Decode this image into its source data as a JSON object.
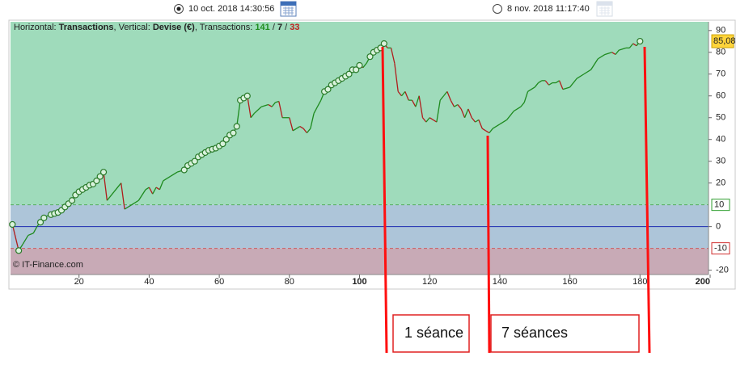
{
  "header": {
    "start": "10 oct. 2018 14:30:56",
    "end": "8 nov. 2018 11:17:40"
  },
  "chart_data": {
    "type": "line",
    "info": {
      "horizontal_label": "Horizontal:",
      "horizontal": "Transactions",
      "separator": ",",
      "vertical_label": "Vertical:",
      "vertical": "Devise (€)",
      "count_label": "Transactions:",
      "counts": [
        141,
        7,
        33
      ],
      "count_separator": "/",
      "count_colors": [
        "#1f8f1f",
        "#222222",
        "#c02020"
      ]
    },
    "copyright": "© IT-Finance.com",
    "xlim": [
      0,
      200
    ],
    "xticks": [
      20,
      40,
      60,
      80,
      100,
      120,
      140,
      160,
      180,
      200
    ],
    "ylim": [
      -22,
      94
    ],
    "yticks": [
      90,
      80,
      70,
      60,
      50,
      40,
      30,
      20,
      0,
      -20
    ],
    "zone_colors": [
      "#9fdbbb",
      "#adc5d9",
      "#c8aab6"
    ],
    "zone_edges": [
      {
        "value": 10,
        "color": "#2e9e2e"
      },
      {
        "value": -10,
        "color": "#d03030"
      }
    ],
    "ref_line": {
      "value": 0,
      "color": "#1c2bb0"
    },
    "last_value": {
      "value": 85.08,
      "label": "85,08"
    },
    "series": [
      {
        "color": "#1e8a1e",
        "down_color": "#b01c1c",
        "x": [
          1,
          2.8,
          4,
          5.5,
          7,
          8,
          9,
          10,
          11,
          12,
          13,
          14,
          15,
          16,
          17,
          18,
          19,
          20,
          21,
          22,
          23,
          24,
          25,
          26,
          27,
          28,
          30,
          32,
          33,
          35,
          37,
          39,
          40,
          41,
          42,
          43,
          44,
          46,
          48,
          50,
          51,
          52,
          53,
          54,
          55,
          56,
          57,
          58,
          59,
          60,
          61,
          62,
          63,
          64,
          65,
          66,
          67,
          68,
          69,
          70,
          72,
          74,
          75,
          76,
          77,
          78,
          80,
          81,
          83,
          84,
          85,
          86,
          87,
          88,
          89,
          90,
          91,
          92,
          93,
          94,
          95,
          96,
          97,
          98,
          99,
          100,
          101,
          102,
          103,
          104,
          105,
          106,
          107,
          108,
          109,
          110,
          111,
          112,
          113,
          114,
          115,
          116,
          117,
          118,
          119,
          120,
          121,
          122,
          123,
          124,
          125,
          126,
          127,
          128,
          129,
          130,
          131,
          132,
          133,
          134,
          135,
          136,
          137,
          138,
          140,
          142,
          144,
          146,
          147,
          148,
          150,
          151,
          152,
          153,
          154,
          155,
          156,
          157,
          158,
          160,
          162,
          164,
          166,
          168,
          170,
          172,
          173,
          174,
          176,
          177,
          178,
          179,
          180
        ],
        "values": [
          1,
          -11,
          -8,
          -4,
          -3,
          0,
          2,
          4,
          5,
          5.5,
          6,
          6.5,
          7.5,
          9,
          10.5,
          12,
          14.5,
          16,
          17,
          18,
          19,
          19.5,
          21,
          23,
          25,
          12,
          16,
          20,
          8,
          10,
          12,
          17,
          18,
          15,
          18,
          17,
          21,
          23,
          25,
          26,
          28,
          29,
          30,
          32,
          33,
          34,
          35,
          35.5,
          36,
          37,
          38,
          40,
          42,
          43,
          46,
          58,
          59,
          60,
          50,
          52,
          55,
          56,
          55,
          57,
          57.5,
          50,
          50,
          44,
          46,
          45,
          43,
          45,
          52,
          55,
          58,
          62,
          63,
          65,
          66,
          67,
          68,
          69,
          70,
          72,
          72,
          74,
          73,
          75,
          78,
          80,
          81,
          82,
          84,
          82,
          82,
          75,
          62,
          60,
          62,
          58,
          58,
          55,
          60,
          50,
          48,
          50,
          49,
          48,
          58,
          60,
          62,
          58,
          55,
          56,
          54,
          50,
          54,
          50,
          48,
          49,
          45,
          44,
          43,
          45,
          47,
          49,
          53,
          55,
          57,
          62,
          64,
          66,
          67,
          67,
          65,
          66,
          66,
          67,
          63,
          64,
          68,
          70,
          72,
          77,
          79,
          80,
          79,
          81,
          82,
          82,
          84,
          83,
          85.08
        ]
      },
      {
        "marker": "circle",
        "color": "#2a7a2a",
        "fill": "#d9f2dc",
        "x": [
          1,
          2.8,
          9,
          10,
          12,
          13,
          14,
          15,
          16,
          17,
          18,
          19,
          20,
          21,
          22,
          23,
          24,
          25,
          26,
          27,
          50,
          51,
          52,
          53,
          54,
          55,
          56,
          57,
          58,
          59,
          60,
          61,
          62,
          63,
          64,
          65,
          66,
          67,
          68,
          90,
          91,
          92,
          93,
          94,
          95,
          96,
          97,
          98,
          99,
          100,
          103,
          104,
          105,
          106,
          107,
          180
        ],
        "values": [
          1,
          -11,
          2,
          4,
          5.5,
          6,
          6.5,
          7.5,
          9,
          10.5,
          12,
          14.5,
          16,
          17,
          18,
          19,
          19.5,
          21,
          23,
          25,
          26,
          28,
          29,
          30,
          32,
          33,
          34,
          35,
          35.5,
          36,
          37,
          38,
          40,
          42,
          43,
          46,
          58,
          59,
          60,
          62,
          63,
          65,
          66,
          67,
          68,
          69,
          70,
          72,
          72,
          74,
          78,
          80,
          81,
          82,
          84,
          85.08
        ]
      }
    ]
  },
  "annotations": [
    "1 séance",
    "7 séances"
  ]
}
